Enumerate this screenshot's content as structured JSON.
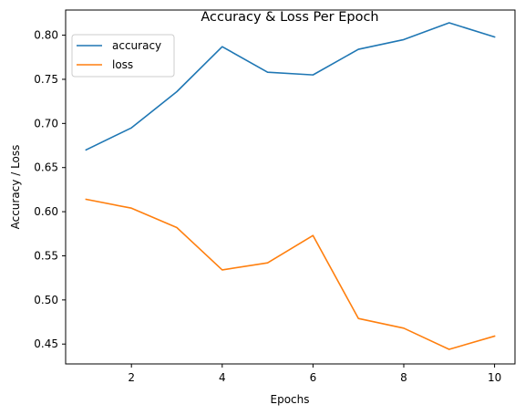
{
  "chart_data": {
    "type": "line",
    "title": "Accuracy & Loss Per Epoch",
    "xlabel": "Epochs",
    "ylabel": "Accuracy / Loss",
    "x": [
      1,
      2,
      3,
      4,
      5,
      6,
      7,
      8,
      9,
      10
    ],
    "xlim": [
      0.55,
      10.45
    ],
    "ylim": [
      0.4275,
      0.8285
    ],
    "xticks": [
      2,
      4,
      6,
      8,
      10
    ],
    "yticks": [
      0.45,
      0.5,
      0.55,
      0.6,
      0.65,
      0.7,
      0.75,
      0.8
    ],
    "grid": false,
    "legend": "upper-left",
    "series": [
      {
        "name": "accuracy",
        "color": "#1f77b4",
        "values": [
          0.67,
          0.695,
          0.736,
          0.787,
          0.758,
          0.755,
          0.784,
          0.795,
          0.814,
          0.798
        ]
      },
      {
        "name": "loss",
        "color": "#ff7f0e",
        "values": [
          0.614,
          0.604,
          0.582,
          0.534,
          0.542,
          0.573,
          0.479,
          0.468,
          0.444,
          0.459
        ]
      }
    ]
  }
}
